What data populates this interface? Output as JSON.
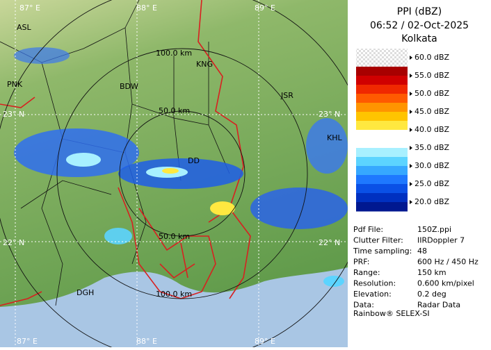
{
  "header": {
    "title": "PPI (dBZ)",
    "time": "06:52 / 02-Oct-2025",
    "site": "Kolkata"
  },
  "legend": {
    "labels": [
      "60.0 dBZ",
      "55.0 dBZ",
      "50.0 dBZ",
      "45.0 dBZ",
      "40.0 dBZ",
      "35.0 dBZ",
      "30.0 dBZ",
      "25.0 dBZ",
      "20.0 dBZ"
    ],
    "colors": [
      "#a80000",
      "#d00000",
      "#f02800",
      "#ff5a00",
      "#ff9400",
      "#ffc400",
      "#ffe840",
      "#ffffff",
      "#ffffff",
      "#a8f0ff",
      "#5cd4ff",
      "#36a8ff",
      "#1e78ff",
      "#0a50e6",
      "#0030c0",
      "#001890"
    ]
  },
  "info": [
    {
      "label": "Pdf File:",
      "value": "150Z.ppi"
    },
    {
      "label": "Clutter Filter:",
      "value": "IIRDoppler 7"
    },
    {
      "label": "Time sampling:",
      "value": "48"
    },
    {
      "label": "PRF:",
      "value": "600 Hz / 450 Hz"
    },
    {
      "label": "Range:",
      "value": "150 km"
    },
    {
      "label": "Resolution:",
      "value": "0.600 km/pixel"
    },
    {
      "label": "Elevation:",
      "value": "0.2 deg"
    },
    {
      "label": "Data:",
      "value": "Radar Data"
    }
  ],
  "footer": "Rainbow® SELEX-SI",
  "map": {
    "longitudes": [
      "87° E",
      "88° E",
      "89° E"
    ],
    "latitudes": [
      "23° N",
      "22° N"
    ],
    "rings": [
      "100.0 km",
      "50.0 km",
      "50.0 km",
      "100.0 km"
    ],
    "places": [
      "BDW",
      "JSR",
      "KHL",
      "DGH",
      "DD",
      "PNK",
      "ASL",
      "KNG"
    ]
  }
}
